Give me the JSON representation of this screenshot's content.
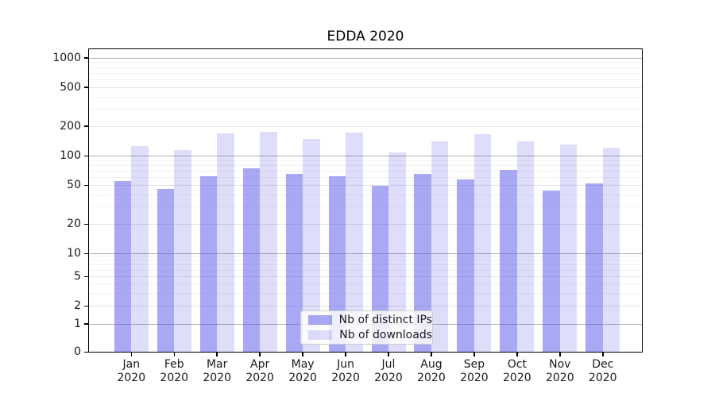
{
  "figure": {
    "background": "#ffffff"
  },
  "chart_data": {
    "type": "bar",
    "title": "EDDA 2020",
    "categories": [
      "Jan 2020",
      "Feb 2020",
      "Mar 2020",
      "Apr 2020",
      "May 2020",
      "Jun 2020",
      "Jul 2020",
      "Aug 2020",
      "Sep 2020",
      "Oct 2020",
      "Nov 2020",
      "Dec 2020"
    ],
    "series": [
      {
        "name": "Nb of distinct IPs",
        "color": "rgba(88,88,236,0.52)",
        "values": [
          55,
          46,
          61,
          74,
          65,
          62,
          49,
          65,
          57,
          72,
          44,
          52
        ]
      },
      {
        "name": "Nb of downloads",
        "color": "rgba(88,88,236,0.2)",
        "values": [
          125,
          114,
          168,
          176,
          148,
          171,
          107,
          141,
          165,
          141,
          129,
          121
        ]
      }
    ],
    "y_axis": {
      "scale": "symlog",
      "tick_values": [
        0,
        1,
        2,
        5,
        10,
        20,
        50,
        100,
        200,
        500,
        1000
      ],
      "tick_labels": [
        "0",
        "1",
        "2",
        "5",
        "10",
        "20",
        "50",
        "100",
        "200",
        "500",
        "1000"
      ],
      "minor_gridline_values": [
        3,
        4,
        6,
        7,
        8,
        9,
        30,
        40,
        60,
        70,
        80,
        90,
        300,
        400,
        600,
        700,
        800,
        900
      ]
    },
    "ylim": [
      0,
      1250
    ],
    "grid": true,
    "legend_position": "lower center",
    "xlabel": "",
    "ylabel": ""
  },
  "colors": {
    "grid_major": "#b0b0b0",
    "grid_labeled": "#e4e4e4",
    "grid_minor": "#f2f2f2",
    "axis": "#000000",
    "text": "#1a1a1a",
    "legend_border": "#cccccc"
  }
}
